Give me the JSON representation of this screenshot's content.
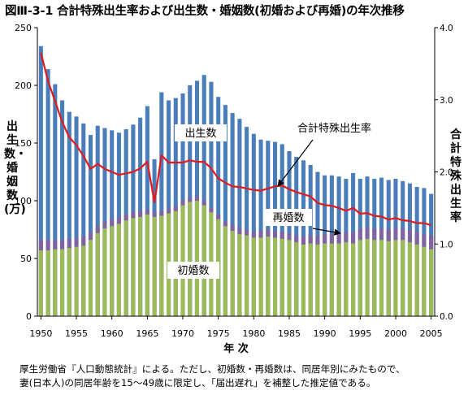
{
  "title": "図Ⅲ-3-1 合計特殊出生率および出生数・婚姻数(初婚および再婚)の年次推移",
  "note": [
    "厚生労働省『人口動態統計』による。ただし、初婚数・再婚数は、同居年別にみたもので、",
    "妻(日本人)の同居年齢を15～49歳に限定し、「届出遅れ」を補整した推定値である。"
  ],
  "colors": {
    "births": "#4a7ebb",
    "first_marriage": "#9bbb59",
    "remarriage": "#8064a2",
    "tfr": "#e31a1c"
  },
  "chart_data": {
    "type": "bar",
    "xlabel": "年 次",
    "ylabel_left": "出生数・婚姻数(万)",
    "ylabel_right": "合計特殊出生率",
    "ylim_left": [
      0,
      250
    ],
    "ylim_right": [
      0.0,
      4.0
    ],
    "yticks_left": [
      "0",
      "50",
      "100",
      "150",
      "200",
      "250"
    ],
    "yticks_right": [
      "0.0",
      "1.0",
      "2.0",
      "3.0",
      "4.0"
    ],
    "xticks": [
      "1950",
      "1955",
      "1960",
      "1965",
      "1970",
      "1975",
      "1980",
      "1985",
      "1990",
      "1995",
      "2000",
      "2005"
    ],
    "x": [
      1950,
      1951,
      1952,
      1953,
      1954,
      1955,
      1956,
      1957,
      1958,
      1959,
      1960,
      1961,
      1962,
      1963,
      1964,
      1965,
      1966,
      1967,
      1968,
      1969,
      1970,
      1971,
      1972,
      1973,
      1974,
      1975,
      1976,
      1977,
      1978,
      1979,
      1980,
      1981,
      1982,
      1983,
      1984,
      1985,
      1986,
      1987,
      1988,
      1989,
      1990,
      1991,
      1992,
      1993,
      1994,
      1995,
      1996,
      1997,
      1998,
      1999,
      2000,
      2001,
      2002,
      2003,
      2004,
      2005
    ],
    "series": [
      {
        "name": "出生数",
        "axis": "left",
        "values": [
          234,
          214,
          201,
          187,
          177,
          173,
          167,
          157,
          165,
          163,
          161,
          159,
          162,
          166,
          172,
          182,
          136,
          194,
          187,
          189,
          193,
          200,
          204,
          209,
          203,
          190,
          183,
          176,
          171,
          164,
          158,
          153,
          152,
          151,
          149,
          143,
          138,
          135,
          131,
          125,
          122,
          122,
          121,
          119,
          124,
          119,
          121,
          119,
          120,
          118,
          119,
          117,
          115,
          112,
          111,
          106
        ]
      },
      {
        "name": "初婚数",
        "axis": "left",
        "values": [
          57,
          57,
          58,
          58,
          59,
          60,
          61,
          66,
          72,
          76,
          78,
          80,
          83,
          85,
          86,
          88,
          86,
          87,
          89,
          91,
          96,
          99,
          100,
          96,
          90,
          84,
          78,
          74,
          71,
          70,
          68,
          68,
          69,
          68,
          67,
          66,
          64,
          62,
          63,
          62,
          63,
          63,
          63,
          64,
          63,
          66,
          67,
          66,
          66,
          65,
          66,
          66,
          64,
          62,
          60,
          58
        ]
      },
      {
        "name": "再婚数",
        "axis": "left",
        "values": [
          66,
          66,
          66,
          66,
          67,
          68,
          69,
          73,
          78,
          82,
          84,
          86,
          88,
          90,
          91,
          92,
          90,
          91,
          93,
          95,
          100,
          103,
          104,
          100,
          94,
          88,
          82,
          79,
          76,
          75,
          73,
          74,
          75,
          74,
          73,
          72,
          70,
          69,
          70,
          70,
          71,
          71,
          72,
          73,
          73,
          76,
          77,
          76,
          76,
          75,
          76,
          76,
          75,
          73,
          71,
          70
        ]
      },
      {
        "name": "合計特殊出生率",
        "axis": "right",
        "style": "line",
        "values": [
          3.65,
          3.26,
          2.98,
          2.69,
          2.48,
          2.37,
          2.22,
          2.04,
          2.11,
          2.04,
          2.0,
          1.96,
          1.98,
          2.0,
          2.05,
          2.14,
          1.58,
          2.23,
          2.13,
          2.13,
          2.13,
          2.16,
          2.14,
          2.14,
          2.05,
          1.91,
          1.85,
          1.8,
          1.79,
          1.77,
          1.75,
          1.74,
          1.77,
          1.8,
          1.81,
          1.76,
          1.72,
          1.69,
          1.66,
          1.57,
          1.54,
          1.53,
          1.5,
          1.46,
          1.5,
          1.42,
          1.43,
          1.39,
          1.38,
          1.34,
          1.36,
          1.33,
          1.32,
          1.29,
          1.29,
          1.26
        ]
      }
    ],
    "annotations": [
      {
        "text": "出生数",
        "target": "出生数"
      },
      {
        "text": "合計特殊出生率",
        "target": "合計特殊出生率"
      },
      {
        "text": "再婚数",
        "target": "再婚数"
      },
      {
        "text": "初婚数",
        "target": "初婚数"
      }
    ],
    "grid": false,
    "legend": "none"
  }
}
